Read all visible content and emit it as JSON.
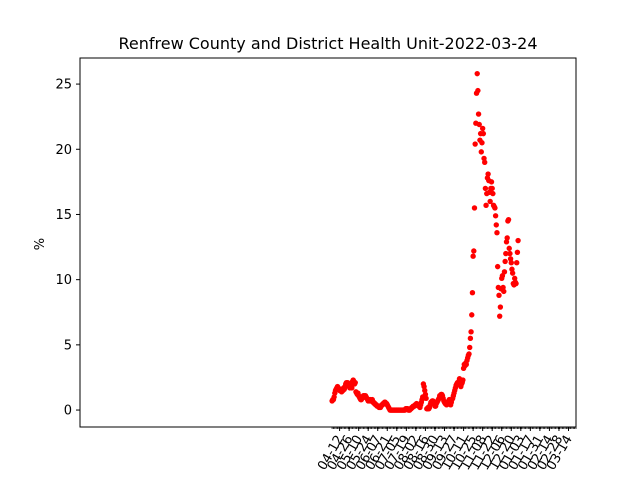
{
  "chart_data": {
    "type": "scatter",
    "title": "Renfrew County and District Health Unit-2022-03-24",
    "xlabel": "",
    "ylabel": "%",
    "x_range": [
      "2020-03-27",
      "2022-03-25"
    ],
    "ylim": [
      -1.3,
      27
    ],
    "grid": false,
    "legend": "none",
    "point_color": "#ff0000",
    "x_tick_labels": [
      "04-12",
      "04-26",
      "05-10",
      "05-24",
      "06-07",
      "06-21",
      "07-05",
      "07-19",
      "08-02",
      "08-16",
      "08-30",
      "09-13",
      "09-27",
      "10-11",
      "10-25",
      "11-08",
      "11-22",
      "12-06",
      "12-20",
      "01-03",
      "01-17",
      "01-31",
      "02-14",
      "02-28",
      "03-14"
    ],
    "x_tick_dates": [
      "2021-04-12",
      "2021-04-26",
      "2021-05-10",
      "2021-05-24",
      "2021-06-07",
      "2021-06-21",
      "2021-07-05",
      "2021-07-19",
      "2021-08-02",
      "2021-08-16",
      "2021-08-30",
      "2021-09-13",
      "2021-09-27",
      "2021-10-11",
      "2021-10-25",
      "2021-11-08",
      "2021-11-22",
      "2021-12-06",
      "2021-12-20",
      "2022-01-03",
      "2022-01-17",
      "2022-01-31",
      "2022-02-14",
      "2022-02-28",
      "2022-03-14"
    ],
    "y_ticks": [
      0,
      5,
      10,
      15,
      20,
      25
    ],
    "series": [
      {
        "points": [
          [
            "2021-04-01",
            0.7
          ],
          [
            "2021-04-02",
            0.8
          ],
          [
            "2021-04-03",
            0.8
          ],
          [
            "2021-04-04",
            1.0
          ],
          [
            "2021-04-05",
            1.3
          ],
          [
            "2021-04-06",
            1.5
          ],
          [
            "2021-04-07",
            1.6
          ],
          [
            "2021-04-08",
            1.7
          ],
          [
            "2021-04-09",
            1.8
          ],
          [
            "2021-04-10",
            1.7
          ],
          [
            "2021-04-11",
            1.6
          ],
          [
            "2021-04-12",
            1.5
          ],
          [
            "2021-04-13",
            1.6
          ],
          [
            "2021-04-14",
            1.5
          ],
          [
            "2021-04-15",
            1.4
          ],
          [
            "2021-04-16",
            1.6
          ],
          [
            "2021-04-17",
            1.5
          ],
          [
            "2021-04-18",
            1.7
          ],
          [
            "2021-04-19",
            1.6
          ],
          [
            "2021-04-20",
            1.8
          ],
          [
            "2021-04-21",
            2.0
          ],
          [
            "2021-04-22",
            2.1
          ],
          [
            "2021-04-23",
            2.0
          ],
          [
            "2021-04-24",
            2.1
          ],
          [
            "2021-04-25",
            1.9
          ],
          [
            "2021-04-26",
            1.8
          ],
          [
            "2021-04-27",
            1.7
          ],
          [
            "2021-04-28",
            1.8
          ],
          [
            "2021-04-29",
            1.9
          ],
          [
            "2021-04-30",
            1.7
          ],
          [
            "2021-05-01",
            2.2
          ],
          [
            "2021-05-02",
            2.3
          ],
          [
            "2021-05-03",
            2.2
          ],
          [
            "2021-05-04",
            2.0
          ],
          [
            "2021-05-05",
            2.1
          ],
          [
            "2021-05-06",
            1.4
          ],
          [
            "2021-05-07",
            1.3
          ],
          [
            "2021-05-08",
            1.2
          ],
          [
            "2021-05-09",
            1.3
          ],
          [
            "2021-05-10",
            1.1
          ],
          [
            "2021-05-11",
            1.0
          ],
          [
            "2021-05-12",
            0.9
          ],
          [
            "2021-05-13",
            0.8
          ],
          [
            "2021-05-14",
            0.8
          ],
          [
            "2021-05-15",
            0.9
          ],
          [
            "2021-05-16",
            1.0
          ],
          [
            "2021-05-17",
            1.1
          ],
          [
            "2021-05-18",
            1.1
          ],
          [
            "2021-05-19",
            1.0
          ],
          [
            "2021-05-20",
            1.1
          ],
          [
            "2021-05-21",
            1.0
          ],
          [
            "2021-05-22",
            0.9
          ],
          [
            "2021-05-23",
            0.8
          ],
          [
            "2021-05-24",
            0.7
          ],
          [
            "2021-05-25",
            0.8
          ],
          [
            "2021-05-26",
            0.7
          ],
          [
            "2021-05-27",
            0.8
          ],
          [
            "2021-05-28",
            0.7
          ],
          [
            "2021-05-29",
            0.7
          ],
          [
            "2021-05-30",
            0.8
          ],
          [
            "2021-05-31",
            0.6
          ],
          [
            "2021-06-01",
            0.6
          ],
          [
            "2021-06-02",
            0.5
          ],
          [
            "2021-06-03",
            0.5
          ],
          [
            "2021-06-04",
            0.4
          ],
          [
            "2021-06-05",
            0.4
          ],
          [
            "2021-06-06",
            0.3
          ],
          [
            "2021-06-07",
            0.3
          ],
          [
            "2021-06-08",
            0.3
          ],
          [
            "2021-06-09",
            0.2
          ],
          [
            "2021-06-10",
            0.3
          ],
          [
            "2021-06-11",
            0.2
          ],
          [
            "2021-06-12",
            0.3
          ],
          [
            "2021-06-13",
            0.4
          ],
          [
            "2021-06-14",
            0.4
          ],
          [
            "2021-06-15",
            0.5
          ],
          [
            "2021-06-16",
            0.5
          ],
          [
            "2021-06-17",
            0.6
          ],
          [
            "2021-06-18",
            0.6
          ],
          [
            "2021-06-19",
            0.5
          ],
          [
            "2021-06-20",
            0.5
          ],
          [
            "2021-06-21",
            0.4
          ],
          [
            "2021-06-22",
            0.3
          ],
          [
            "2021-06-23",
            0.2
          ],
          [
            "2021-06-24",
            0.1
          ],
          [
            "2021-06-25",
            0.0
          ],
          [
            "2021-06-26",
            0.0
          ],
          [
            "2021-06-27",
            0.0
          ],
          [
            "2021-06-28",
            0.0
          ],
          [
            "2021-06-29",
            0.0
          ],
          [
            "2021-06-30",
            0.0
          ],
          [
            "2021-07-01",
            0.0
          ],
          [
            "2021-07-02",
            0.0
          ],
          [
            "2021-07-03",
            0.0
          ],
          [
            "2021-07-04",
            0.0
          ],
          [
            "2021-07-05",
            0.0
          ],
          [
            "2021-07-06",
            0.0
          ],
          [
            "2021-07-07",
            0.0
          ],
          [
            "2021-07-08",
            0.0
          ],
          [
            "2021-07-09",
            0.0
          ],
          [
            "2021-07-10",
            0.0
          ],
          [
            "2021-07-11",
            0.0
          ],
          [
            "2021-07-12",
            0.0
          ],
          [
            "2021-07-13",
            0.0
          ],
          [
            "2021-07-14",
            0.0
          ],
          [
            "2021-07-15",
            0.0
          ],
          [
            "2021-07-16",
            0.0
          ],
          [
            "2021-07-17",
            0.0
          ],
          [
            "2021-07-18",
            0.1
          ],
          [
            "2021-07-19",
            0.1
          ],
          [
            "2021-07-20",
            0.1
          ],
          [
            "2021-07-21",
            0.1
          ],
          [
            "2021-07-22",
            0.0
          ],
          [
            "2021-07-23",
            0.0
          ],
          [
            "2021-07-24",
            0.0
          ],
          [
            "2021-07-25",
            0.1
          ],
          [
            "2021-07-26",
            0.1
          ],
          [
            "2021-07-27",
            0.2
          ],
          [
            "2021-07-28",
            0.2
          ],
          [
            "2021-07-29",
            0.3
          ],
          [
            "2021-07-30",
            0.3
          ],
          [
            "2021-07-31",
            0.3
          ],
          [
            "2021-08-01",
            0.4
          ],
          [
            "2021-08-02",
            0.4
          ],
          [
            "2021-08-03",
            0.5
          ],
          [
            "2021-08-04",
            0.4
          ],
          [
            "2021-08-05",
            0.4
          ],
          [
            "2021-08-06",
            0.3
          ],
          [
            "2021-08-07",
            0.3
          ],
          [
            "2021-08-08",
            0.2
          ],
          [
            "2021-08-09",
            0.4
          ],
          [
            "2021-08-10",
            0.6
          ],
          [
            "2021-08-11",
            0.8
          ],
          [
            "2021-08-12",
            1.0
          ],
          [
            "2021-08-13",
            2.0
          ],
          [
            "2021-08-14",
            1.8
          ],
          [
            "2021-08-15",
            1.5
          ],
          [
            "2021-08-16",
            1.2
          ],
          [
            "2021-08-17",
            0.9
          ],
          [
            "2021-08-18",
            0.1
          ],
          [
            "2021-08-19",
            0.1
          ],
          [
            "2021-08-20",
            0.2
          ],
          [
            "2021-08-21",
            0.1
          ],
          [
            "2021-08-22",
            0.2
          ],
          [
            "2021-08-23",
            0.4
          ],
          [
            "2021-08-24",
            0.6
          ],
          [
            "2021-08-25",
            0.6
          ],
          [
            "2021-08-26",
            0.7
          ],
          [
            "2021-08-27",
            0.7
          ],
          [
            "2021-08-28",
            0.6
          ],
          [
            "2021-08-29",
            0.6
          ],
          [
            "2021-08-30",
            0.3
          ],
          [
            "2021-08-31",
            0.3
          ],
          [
            "2021-09-01",
            0.5
          ],
          [
            "2021-09-02",
            0.6
          ],
          [
            "2021-09-03",
            0.7
          ],
          [
            "2021-09-04",
            0.8
          ],
          [
            "2021-09-05",
            0.9
          ],
          [
            "2021-09-06",
            1.1
          ],
          [
            "2021-09-07",
            1.0
          ],
          [
            "2021-09-08",
            1.2
          ],
          [
            "2021-09-09",
            1.2
          ],
          [
            "2021-09-10",
            1.1
          ],
          [
            "2021-09-11",
            0.9
          ],
          [
            "2021-09-12",
            0.7
          ],
          [
            "2021-09-13",
            0.6
          ],
          [
            "2021-09-14",
            0.5
          ],
          [
            "2021-09-15",
            0.5
          ],
          [
            "2021-09-16",
            0.4
          ],
          [
            "2021-09-17",
            0.5
          ],
          [
            "2021-09-18",
            0.6
          ],
          [
            "2021-09-19",
            0.7
          ],
          [
            "2021-09-20",
            0.8
          ],
          [
            "2021-09-21",
            0.5
          ],
          [
            "2021-09-22",
            0.4
          ],
          [
            "2021-09-23",
            0.6
          ],
          [
            "2021-09-24",
            0.8
          ],
          [
            "2021-09-25",
            0.9
          ],
          [
            "2021-09-26",
            1.1
          ],
          [
            "2021-09-27",
            1.3
          ],
          [
            "2021-09-28",
            1.5
          ],
          [
            "2021-09-29",
            1.7
          ],
          [
            "2021-09-30",
            1.9
          ],
          [
            "2021-10-01",
            2.0
          ],
          [
            "2021-10-02",
            2.1
          ],
          [
            "2021-10-03",
            2.1
          ],
          [
            "2021-10-04",
            2.2
          ],
          [
            "2021-10-05",
            2.4
          ],
          [
            "2021-10-06",
            1.9
          ],
          [
            "2021-10-07",
            1.8
          ],
          [
            "2021-10-08",
            2.0
          ],
          [
            "2021-10-09",
            2.1
          ],
          [
            "2021-10-10",
            2.3
          ],
          [
            "2021-10-11",
            3.2
          ],
          [
            "2021-10-12",
            3.5
          ],
          [
            "2021-10-13",
            3.4
          ],
          [
            "2021-10-14",
            3.6
          ],
          [
            "2021-10-15",
            3.5
          ],
          [
            "2021-10-16",
            3.8
          ],
          [
            "2021-10-17",
            4.0
          ],
          [
            "2021-10-18",
            4.2
          ],
          [
            "2021-10-19",
            4.3
          ],
          [
            "2021-10-20",
            4.8
          ],
          [
            "2021-10-21",
            5.5
          ],
          [
            "2021-10-22",
            6.0
          ],
          [
            "2021-10-23",
            7.3
          ],
          [
            "2021-10-24",
            9.0
          ],
          [
            "2021-10-25",
            11.8
          ],
          [
            "2021-10-26",
            12.2
          ],
          [
            "2021-10-27",
            15.5
          ],
          [
            "2021-10-28",
            20.4
          ],
          [
            "2021-10-29",
            22.0
          ],
          [
            "2021-10-30",
            24.3
          ],
          [
            "2021-10-31",
            25.8
          ],
          [
            "2021-11-01",
            24.5
          ],
          [
            "2021-11-02",
            22.7
          ],
          [
            "2021-11-03",
            21.9
          ],
          [
            "2021-11-04",
            20.7
          ],
          [
            "2021-11-05",
            21.2
          ],
          [
            "2021-11-06",
            19.8
          ],
          [
            "2021-11-07",
            20.5
          ],
          [
            "2021-11-08",
            21.6
          ],
          [
            "2021-11-09",
            21.2
          ],
          [
            "2021-11-10",
            19.3
          ],
          [
            "2021-11-11",
            19.0
          ],
          [
            "2021-11-12",
            17.0
          ],
          [
            "2021-11-13",
            15.7
          ],
          [
            "2021-11-14",
            16.6
          ],
          [
            "2021-11-15",
            17.8
          ],
          [
            "2021-11-16",
            18.1
          ],
          [
            "2021-11-17",
            17.6
          ],
          [
            "2021-11-18",
            16.7
          ],
          [
            "2021-11-19",
            16.0
          ],
          [
            "2021-11-20",
            17.0
          ],
          [
            "2021-11-21",
            17.5
          ],
          [
            "2021-11-22",
            17.0
          ],
          [
            "2021-11-23",
            16.6
          ],
          [
            "2021-11-24",
            15.7
          ],
          [
            "2021-11-25",
            15.6
          ],
          [
            "2021-11-26",
            15.5
          ],
          [
            "2021-11-27",
            14.9
          ],
          [
            "2021-11-28",
            14.2
          ],
          [
            "2021-11-29",
            13.6
          ],
          [
            "2021-11-30",
            11.0
          ],
          [
            "2021-12-01",
            9.4
          ],
          [
            "2021-12-02",
            8.8
          ],
          [
            "2021-12-03",
            7.2
          ],
          [
            "2021-12-04",
            7.9
          ],
          [
            "2021-12-05",
            9.3
          ],
          [
            "2021-12-06",
            10.1
          ],
          [
            "2021-12-07",
            10.3
          ],
          [
            "2021-12-08",
            9.4
          ],
          [
            "2021-12-09",
            9.1
          ],
          [
            "2021-12-10",
            10.6
          ],
          [
            "2021-12-11",
            11.4
          ],
          [
            "2021-12-12",
            12.0
          ],
          [
            "2021-12-13",
            12.9
          ],
          [
            "2021-12-14",
            13.2
          ],
          [
            "2021-12-15",
            14.5
          ],
          [
            "2021-12-16",
            14.6
          ],
          [
            "2021-12-17",
            12.4
          ],
          [
            "2021-12-18",
            12.0
          ],
          [
            "2021-12-19",
            11.6
          ],
          [
            "2021-12-20",
            11.3
          ],
          [
            "2021-12-21",
            10.8
          ],
          [
            "2021-12-22",
            10.5
          ],
          [
            "2021-12-23",
            9.7
          ],
          [
            "2021-12-24",
            9.6
          ],
          [
            "2021-12-25",
            10.1
          ],
          [
            "2021-12-26",
            9.8
          ],
          [
            "2021-12-27",
            9.7
          ],
          [
            "2021-12-28",
            11.3
          ],
          [
            "2021-12-29",
            12.1
          ],
          [
            "2021-12-30",
            13.0
          ]
        ]
      }
    ]
  }
}
